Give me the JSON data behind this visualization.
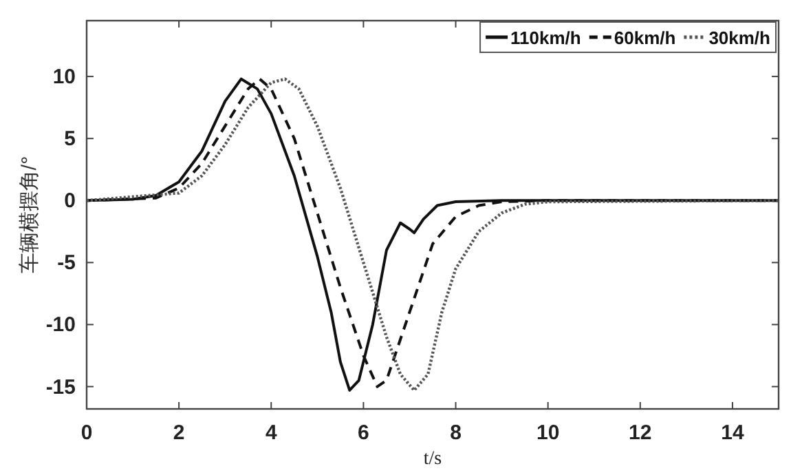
{
  "chart_data": {
    "type": "line",
    "xlabel": "t/s",
    "ylabel": "车辆横摆角/°",
    "xlim": [
      0,
      15
    ],
    "ylim": [
      -16.8,
      14.5
    ],
    "xticks": [
      0,
      2,
      4,
      6,
      8,
      10,
      12,
      14
    ],
    "yticks": [
      -15,
      -10,
      -5,
      0,
      5,
      10
    ],
    "grid": false,
    "legend": "top right",
    "marker": "none",
    "series": [
      {
        "name": "110km/h",
        "color": "#111111",
        "line_style": "solid",
        "x": [
          0,
          1,
          1.5,
          2,
          2.5,
          3,
          3.35,
          3.7,
          4,
          4.5,
          5,
          5.3,
          5.5,
          5.7,
          5.9,
          6.2,
          6.5,
          6.8,
          7.0,
          7.1,
          7.3,
          7.6,
          8,
          9,
          15
        ],
        "values": [
          0,
          0.1,
          0.4,
          1.5,
          4,
          8,
          9.8,
          9,
          7,
          2,
          -4.5,
          -9,
          -13,
          -15.3,
          -14.5,
          -10,
          -4,
          -1.8,
          -2.3,
          -2.6,
          -1.5,
          -0.4,
          -0.1,
          0,
          0
        ]
      },
      {
        "name": "60km/h",
        "color": "#111111",
        "line_style": "dashed",
        "x": [
          0,
          1.5,
          2,
          2.5,
          3,
          3.5,
          3.75,
          4,
          4.5,
          5,
          5.5,
          6,
          6.3,
          6.5,
          7,
          7.5,
          8,
          8.5,
          9,
          10,
          15
        ],
        "values": [
          0,
          0.2,
          1,
          3,
          6,
          9,
          9.8,
          9,
          5,
          -1,
          -7,
          -12.5,
          -15,
          -14.5,
          -9,
          -3.5,
          -1.3,
          -0.4,
          -0.1,
          0,
          0
        ]
      },
      {
        "name": "30km/h",
        "color": "#555555",
        "line_style": "dotted",
        "x": [
          0,
          2,
          2.5,
          3,
          3.5,
          4,
          4.3,
          4.6,
          5,
          5.5,
          6,
          6.5,
          6.8,
          7.1,
          7.4,
          7.7,
          8,
          8.5,
          9,
          9.5,
          10,
          15
        ],
        "values": [
          0,
          0.6,
          2,
          4.5,
          7.5,
          9.5,
          9.8,
          9,
          6,
          1,
          -5,
          -11,
          -14,
          -15.3,
          -14,
          -9,
          -5.5,
          -2.5,
          -1,
          -0.3,
          -0.1,
          0
        ]
      }
    ]
  }
}
